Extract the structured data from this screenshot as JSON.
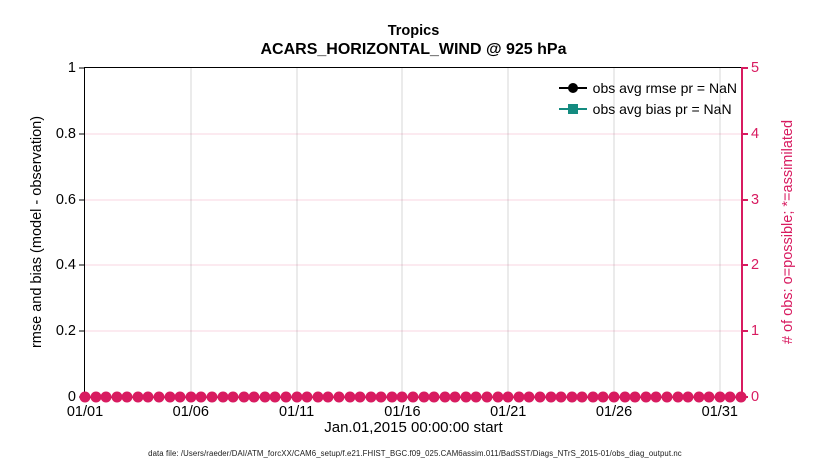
{
  "chart_data": {
    "type": "line",
    "title": "Tropics",
    "subtitle": "ACARS_HORIZONTAL_WIND @ 925 hPa",
    "xlabel": "Jan.01,2015 00:00:00 start",
    "ylabel_left": "rmse and bias (model - observation)",
    "ylabel_right": "# of obs: o=possible; *=assimilated",
    "ylim_left": [
      0,
      1
    ],
    "ylim_right": [
      0,
      5
    ],
    "x_day_max": 31,
    "x_ticks": [
      {
        "label": "01/01",
        "day": 0
      },
      {
        "label": "01/06",
        "day": 5
      },
      {
        "label": "01/11",
        "day": 10
      },
      {
        "label": "01/16",
        "day": 15
      },
      {
        "label": "01/21",
        "day": 20
      },
      {
        "label": "01/26",
        "day": 25
      },
      {
        "label": "01/31",
        "day": 30
      }
    ],
    "y_ticks_left": [
      {
        "label": "0",
        "value": 0
      },
      {
        "label": "0.2",
        "value": 0.2
      },
      {
        "label": "0.4",
        "value": 0.4
      },
      {
        "label": "0.6",
        "value": 0.6
      },
      {
        "label": "0.8",
        "value": 0.8
      },
      {
        "label": "1",
        "value": 1
      }
    ],
    "y_ticks_right": [
      {
        "label": "0",
        "value": 0
      },
      {
        "label": "1",
        "value": 1
      },
      {
        "label": "2",
        "value": 2
      },
      {
        "label": "3",
        "value": 3
      },
      {
        "label": "4",
        "value": 4
      },
      {
        "label": "5",
        "value": 5
      }
    ],
    "grid": true,
    "legend_position": "top-right-inside",
    "series": [
      {
        "name": "obs avg rmse pr = NaN",
        "marker": "circle",
        "color": "#000000",
        "values": []
      },
      {
        "name": "obs avg bias pr = NaN",
        "marker": "square",
        "color": "#148b80",
        "values": []
      },
      {
        "name": "# of obs possible",
        "marker": "circle",
        "color": "#d81b60",
        "axis": "right",
        "band": {
          "start_day": 0,
          "end_day": 31,
          "step_days": 0.5,
          "count": 63,
          "value": 0
        }
      }
    ]
  },
  "footer": "data file: /Users/raeder/DAI/ATM_forcXX/CAM6_setup/f.e21.FHIST_BGC.f09_025.CAM6assim.011/BadSST/Diags_NTrS_2015-01/obs_diag_output.nc",
  "colors": {
    "accent_pink": "#d81b60",
    "bias_teal": "#148b80",
    "rmse_black": "#000000",
    "grid_vertical": "#9a9a9a",
    "grid_horizontal": "#f3c9da"
  }
}
